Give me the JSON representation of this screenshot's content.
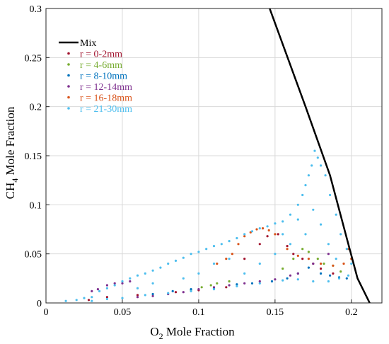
{
  "chart_data": {
    "type": "scatter",
    "xlabel": {
      "main": "O",
      "sub": "2",
      "rest": " Mole Fraction"
    },
    "ylabel": {
      "main": "CH",
      "sub": "4",
      "rest": " Mole Fraction"
    },
    "xlim": [
      0,
      0.22
    ],
    "ylim": [
      0,
      0.3
    ],
    "xticks": [
      {
        "v": 0,
        "label": "0"
      },
      {
        "v": 0.05,
        "label": "0.05"
      },
      {
        "v": 0.1,
        "label": "0.1"
      },
      {
        "v": 0.15,
        "label": "0.15"
      },
      {
        "v": 0.2,
        "label": "0.2"
      }
    ],
    "yticks": [
      {
        "v": 0,
        "label": "0"
      },
      {
        "v": 0.05,
        "label": "0.05"
      },
      {
        "v": 0.1,
        "label": "0.1"
      },
      {
        "v": 0.15,
        "label": "0.15"
      },
      {
        "v": 0.2,
        "label": "0.2"
      },
      {
        "v": 0.25,
        "label": "0.25"
      },
      {
        "v": 0.3,
        "label": "0.3"
      }
    ],
    "grid": true,
    "legend_position": "top-left",
    "mix_line": {
      "name": "Mix",
      "color": "#000000",
      "points": [
        [
          0.1465,
          0.3
        ],
        [
          0.17,
          0.2
        ],
        [
          0.186,
          0.13
        ],
        [
          0.198,
          0.06
        ],
        [
          0.204,
          0.025
        ],
        [
          0.212,
          0.0
        ]
      ]
    },
    "series": [
      {
        "name": "r = 0-2mm",
        "color": "#a2142f",
        "points": [
          [
            0.028,
            0.003
          ],
          [
            0.04,
            0.006
          ],
          [
            0.06,
            0.008
          ],
          [
            0.085,
            0.011
          ],
          [
            0.1,
            0.013
          ],
          [
            0.118,
            0.016
          ],
          [
            0.13,
            0.045
          ],
          [
            0.14,
            0.06
          ],
          [
            0.145,
            0.068
          ],
          [
            0.152,
            0.07
          ],
          [
            0.158,
            0.058
          ],
          [
            0.162,
            0.05
          ],
          [
            0.168,
            0.045
          ],
          [
            0.175,
            0.04
          ],
          [
            0.18,
            0.035
          ],
          [
            0.188,
            0.03
          ]
        ]
      },
      {
        "name": "r = 4-6mm",
        "color": "#77ac30",
        "points": [
          [
            0.095,
            0.013
          ],
          [
            0.102,
            0.016
          ],
          [
            0.108,
            0.018
          ],
          [
            0.112,
            0.02
          ],
          [
            0.12,
            0.022
          ],
          [
            0.155,
            0.035
          ],
          [
            0.162,
            0.045
          ],
          [
            0.168,
            0.055
          ],
          [
            0.172,
            0.052
          ],
          [
            0.178,
            0.045
          ],
          [
            0.182,
            0.04
          ],
          [
            0.188,
            0.038
          ],
          [
            0.193,
            0.032
          ]
        ]
      },
      {
        "name": "r = 8-10mm",
        "color": "#0072bd",
        "points": [
          [
            0.07,
            0.009
          ],
          [
            0.083,
            0.012
          ],
          [
            0.095,
            0.014
          ],
          [
            0.11,
            0.015
          ],
          [
            0.125,
            0.019
          ],
          [
            0.135,
            0.02
          ],
          [
            0.148,
            0.022
          ],
          [
            0.158,
            0.025
          ],
          [
            0.165,
            0.03
          ],
          [
            0.172,
            0.036
          ],
          [
            0.18,
            0.03
          ],
          [
            0.186,
            0.028
          ],
          [
            0.192,
            0.026
          ],
          [
            0.197,
            0.025
          ]
        ]
      },
      {
        "name": "r = 12-14mm",
        "color": "#7e2f8e",
        "points": [
          [
            0.03,
            0.012
          ],
          [
            0.034,
            0.014
          ],
          [
            0.04,
            0.018
          ],
          [
            0.045,
            0.02
          ],
          [
            0.05,
            0.02
          ],
          [
            0.055,
            0.022
          ],
          [
            0.06,
            0.006
          ],
          [
            0.07,
            0.007
          ],
          [
            0.08,
            0.009
          ],
          [
            0.09,
            0.011
          ],
          [
            0.1,
            0.014
          ],
          [
            0.11,
            0.016
          ],
          [
            0.12,
            0.018
          ],
          [
            0.13,
            0.02
          ],
          [
            0.14,
            0.022
          ],
          [
            0.15,
            0.024
          ],
          [
            0.16,
            0.028
          ],
          [
            0.165,
            0.03
          ],
          [
            0.175,
            0.04
          ],
          [
            0.185,
            0.05
          ]
        ]
      },
      {
        "name": "r = 16-18mm",
        "color": "#d95319",
        "points": [
          [
            0.112,
            0.04
          ],
          [
            0.118,
            0.045
          ],
          [
            0.122,
            0.05
          ],
          [
            0.126,
            0.06
          ],
          [
            0.13,
            0.068
          ],
          [
            0.134,
            0.072
          ],
          [
            0.138,
            0.075
          ],
          [
            0.142,
            0.076
          ],
          [
            0.146,
            0.074
          ],
          [
            0.15,
            0.07
          ],
          [
            0.158,
            0.055
          ],
          [
            0.165,
            0.048
          ],
          [
            0.172,
            0.045
          ],
          [
            0.18,
            0.04
          ],
          [
            0.188,
            0.038
          ],
          [
            0.195,
            0.04
          ],
          [
            0.2,
            0.045
          ],
          [
            0.198,
            0.055
          ]
        ]
      },
      {
        "name": "r = 21-30mm",
        "color": "#4dbeee",
        "points": [
          [
            0.013,
            0.002
          ],
          [
            0.02,
            0.003
          ],
          [
            0.025,
            0.005
          ],
          [
            0.03,
            0.006
          ],
          [
            0.035,
            0.012
          ],
          [
            0.04,
            0.015
          ],
          [
            0.045,
            0.018
          ],
          [
            0.05,
            0.022
          ],
          [
            0.055,
            0.025
          ],
          [
            0.06,
            0.028
          ],
          [
            0.065,
            0.03
          ],
          [
            0.07,
            0.033
          ],
          [
            0.075,
            0.036
          ],
          [
            0.08,
            0.04
          ],
          [
            0.085,
            0.043
          ],
          [
            0.09,
            0.046
          ],
          [
            0.095,
            0.05
          ],
          [
            0.1,
            0.052
          ],
          [
            0.105,
            0.055
          ],
          [
            0.11,
            0.058
          ],
          [
            0.115,
            0.06
          ],
          [
            0.12,
            0.063
          ],
          [
            0.125,
            0.066
          ],
          [
            0.13,
            0.07
          ],
          [
            0.135,
            0.073
          ],
          [
            0.14,
            0.076
          ],
          [
            0.145,
            0.078
          ],
          [
            0.15,
            0.081
          ],
          [
            0.155,
            0.083
          ],
          [
            0.16,
            0.09
          ],
          [
            0.165,
            0.1
          ],
          [
            0.168,
            0.11
          ],
          [
            0.17,
            0.12
          ],
          [
            0.172,
            0.13
          ],
          [
            0.174,
            0.14
          ],
          [
            0.176,
            0.155
          ],
          [
            0.178,
            0.148
          ],
          [
            0.18,
            0.14
          ],
          [
            0.183,
            0.13
          ],
          [
            0.186,
            0.11
          ],
          [
            0.19,
            0.09
          ],
          [
            0.193,
            0.07
          ],
          [
            0.197,
            0.055
          ],
          [
            0.2,
            0.04
          ],
          [
            0.198,
            0.028
          ],
          [
            0.192,
            0.025
          ],
          [
            0.185,
            0.022
          ],
          [
            0.175,
            0.022
          ],
          [
            0.165,
            0.024
          ],
          [
            0.155,
            0.023
          ],
          [
            0.14,
            0.02
          ],
          [
            0.125,
            0.017
          ],
          [
            0.11,
            0.014
          ],
          [
            0.095,
            0.012
          ],
          [
            0.08,
            0.01
          ],
          [
            0.065,
            0.008
          ],
          [
            0.05,
            0.005
          ],
          [
            0.04,
            0.004
          ],
          [
            0.03,
            0.002
          ],
          [
            0.13,
            0.03
          ],
          [
            0.14,
            0.04
          ],
          [
            0.15,
            0.05
          ],
          [
            0.16,
            0.06
          ],
          [
            0.17,
            0.07
          ],
          [
            0.18,
            0.08
          ],
          [
            0.155,
            0.07
          ],
          [
            0.165,
            0.085
          ],
          [
            0.175,
            0.095
          ],
          [
            0.185,
            0.06
          ],
          [
            0.19,
            0.045
          ],
          [
            0.1,
            0.03
          ],
          [
            0.11,
            0.04
          ],
          [
            0.12,
            0.045
          ],
          [
            0.09,
            0.025
          ],
          [
            0.07,
            0.02
          ],
          [
            0.06,
            0.015
          ]
        ]
      }
    ]
  }
}
